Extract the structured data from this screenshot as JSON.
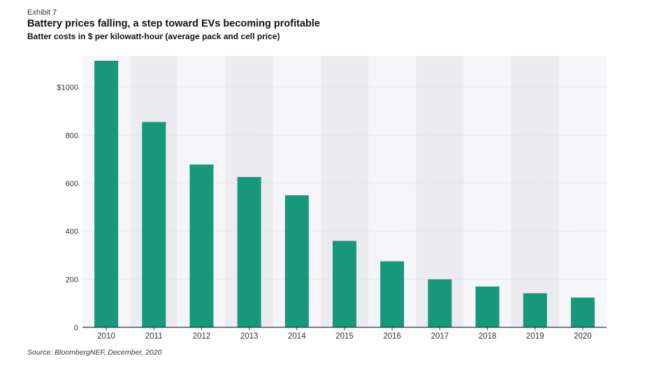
{
  "header": {
    "exhibit": "Exhibit 7",
    "title": "Battery prices falling, a step toward EVs becoming profitable",
    "subtitle": "Batter costs in $ per kilowatt-hour (average pack and cell price)"
  },
  "footer": {
    "source": "Source: BloombergNEF, December, 2020"
  },
  "colors": {
    "bar": "#17987a",
    "band_dark": "#ececf0",
    "band_light": "#f6f6f9",
    "axis": "#333333",
    "grid": "#d9d9de"
  },
  "chart_data": {
    "type": "bar",
    "title": "Battery prices falling, a step toward EVs becoming profitable",
    "subtitle": "Batter costs in $ per kilowatt-hour (average pack and cell price)",
    "xlabel": "",
    "ylabel": "",
    "categories": [
      "2010",
      "2011",
      "2012",
      "2013",
      "2014",
      "2015",
      "2016",
      "2017",
      "2018",
      "2019",
      "2020"
    ],
    "values": [
      1110,
      855,
      678,
      626,
      550,
      360,
      275,
      200,
      170,
      142,
      124
    ],
    "ylim": [
      0,
      1130
    ],
    "yticks": [
      0,
      200,
      400,
      600,
      800,
      1000
    ],
    "ytick_labels": [
      "0",
      "200",
      "400",
      "600",
      "800",
      "$1000"
    ],
    "grid": true,
    "legend": "none"
  }
}
